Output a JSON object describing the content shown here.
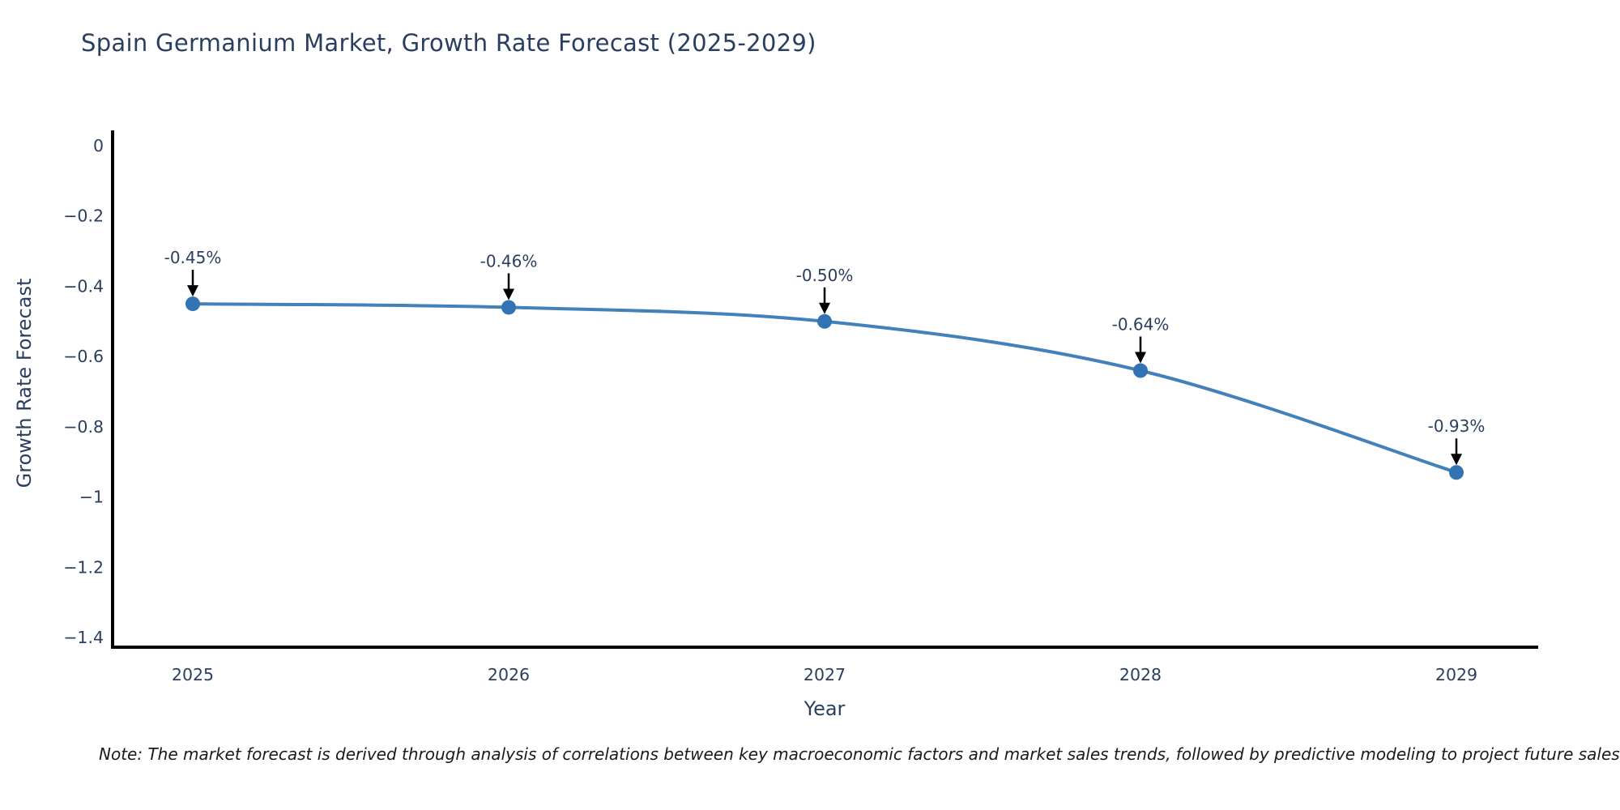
{
  "title": "Spain Germanium Market, Growth Rate Forecast (2025-2029)",
  "note": "Note: The market forecast is derived through analysis of correlations between key macroeconomic factors and market sales trends, followed by predictive modeling to project future sales",
  "chart_data": {
    "type": "line",
    "title": "Spain Germanium Market, Growth Rate Forecast (2025-2029)",
    "x": [
      2025,
      2026,
      2027,
      2028,
      2029
    ],
    "values": [
      -0.45,
      -0.46,
      -0.5,
      -0.64,
      -0.93
    ],
    "point_labels": [
      "-0.45%",
      "-0.46%",
      "-0.50%",
      "-0.64%",
      "-0.93%"
    ],
    "series_name": "Growth Rate Forecast",
    "xlabel": "Year",
    "ylabel": "Growth Rate Forecast",
    "xtick_labels": [
      "2025",
      "2026",
      "2027",
      "2028",
      "2029"
    ],
    "ytick_values": [
      0,
      -0.2,
      -0.4,
      -0.6,
      -0.8,
      -1,
      -1.2,
      -1.4
    ],
    "ytick_labels": [
      "0",
      "−0.2",
      "−0.4",
      "−0.6",
      "−0.8",
      "−1",
      "−1.2",
      "−1.4"
    ],
    "ylim": [
      0.044,
      -1.428
    ],
    "xlim": [
      2024.74,
      2029.26
    ],
    "grid": false,
    "legend": "none",
    "line_shape": "spline",
    "colors": {
      "line": "#4281b9",
      "marker": "#3173b3",
      "axis_line": "#000000",
      "tick_text": "#2a3f5f",
      "annotation_text": "#2a3f5f",
      "annotation_arrow": "#000000",
      "background": "#ffffff"
    }
  }
}
